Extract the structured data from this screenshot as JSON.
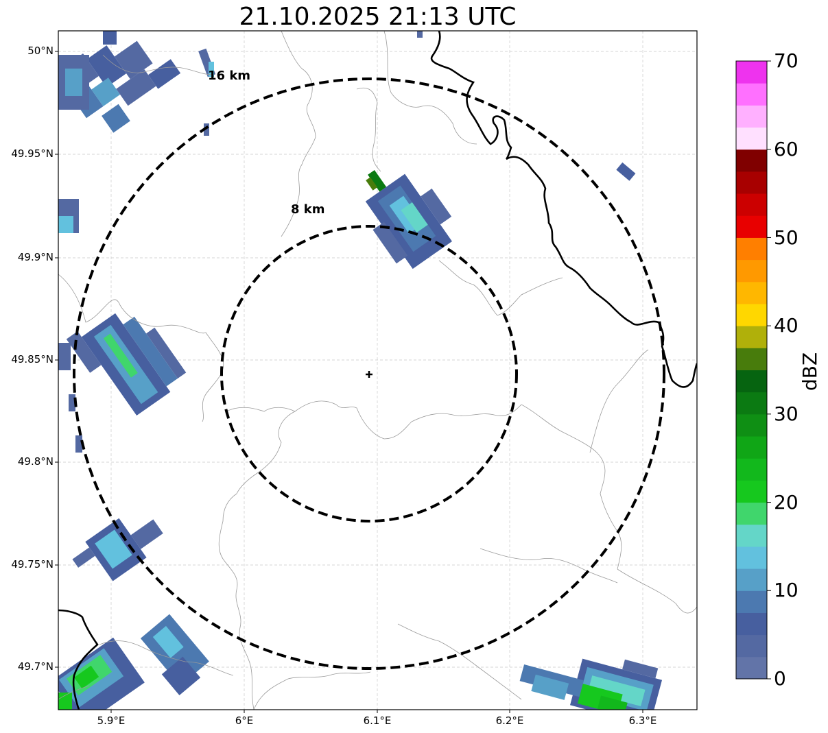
{
  "title": "21.10.2025 21:13 UTC",
  "map": {
    "lat_ticks": [
      "50°N",
      "49.95°N",
      "49.9°N",
      "49.85°N",
      "49.8°N",
      "49.75°N",
      "49.7°N"
    ],
    "lon_ticks": [
      "5.9°E",
      "6°E",
      "6.1°E",
      "6.2°E",
      "6.3°E"
    ],
    "rings": [
      {
        "label": "8 km",
        "radius_km": 8
      },
      {
        "label": "16 km",
        "radius_km": 16
      }
    ],
    "radar_site": {
      "lon": 6.095,
      "lat": 49.843
    },
    "colors": {
      "border": "#000000",
      "admin": "#9a9a9a",
      "grid": "#c8c8c8"
    }
  },
  "colorbar": {
    "label": "dBZ",
    "ticks": [
      "0",
      "10",
      "20",
      "30",
      "40",
      "50",
      "60",
      "70"
    ],
    "colors": [
      "#6274a8",
      "#5469a2",
      "#475f9f",
      "#4c79b0",
      "#57a0c8",
      "#62c1de",
      "#64d6c8",
      "#40d66c",
      "#16c81e",
      "#12b81c",
      "#10a616",
      "#0f8f14",
      "#0b7a12",
      "#066410",
      "#487c0c",
      "#b0b00a",
      "#ffd700",
      "#ffb700",
      "#ff9900",
      "#ff7f00",
      "#e80000",
      "#cc0000",
      "#a80000",
      "#800000",
      "#ffe0ff",
      "#ffb0ff",
      "#ff70ff",
      "#ee33ee"
    ]
  }
}
